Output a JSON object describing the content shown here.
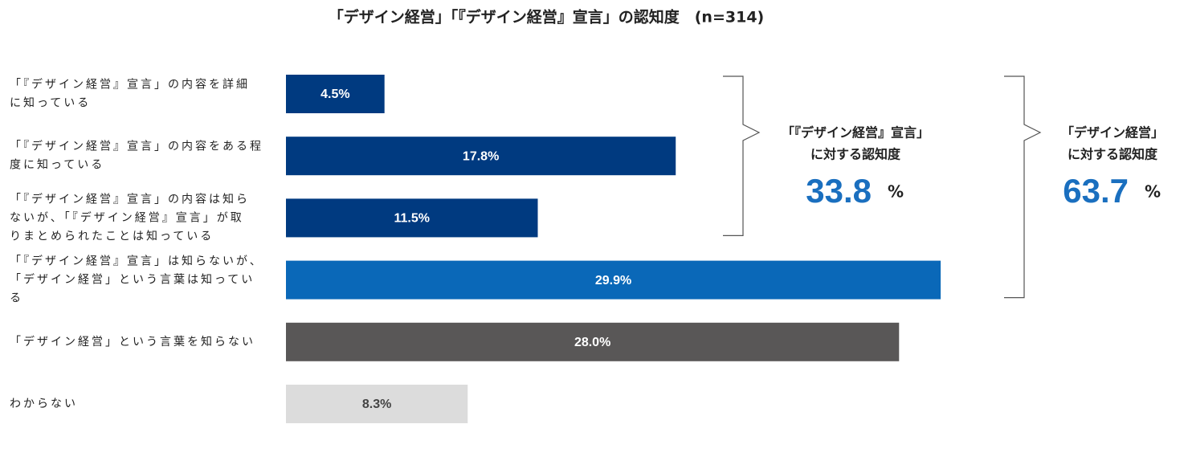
{
  "chart_data": {
    "type": "bar",
    "orientation": "horizontal",
    "title": "「デザイン経営」「『デザイン経営』宣言」の認知度　(n=314)",
    "categories": [
      [
        "「『デザイン経営』宣言」の内容を詳細",
        "に知っている"
      ],
      [
        "「『デザイン経営』宣言」の内容をある程",
        "度に知っている"
      ],
      [
        "「『デザイン経営』宣言」の内容は知ら",
        "ないが、「『デザイン経営』宣言」が取",
        "りまとめられたことは知っている"
      ],
      [
        "「『デザイン経営』宣言」は知らないが、",
        "「デザイン経営」という言葉は知ってい",
        "る"
      ],
      [
        "「デザイン経営」という言葉を知らない"
      ],
      [
        "わからない"
      ]
    ],
    "values": [
      4.5,
      17.8,
      11.5,
      29.9,
      28.0,
      8.3
    ],
    "value_labels": [
      "4.5%",
      "17.8%",
      "11.5%",
      "29.9%",
      "28.0%",
      "8.3%"
    ],
    "colors": [
      "#003a80",
      "#003a80",
      "#003a80",
      "#0a68b8",
      "#595757",
      "#dcdcdc"
    ],
    "label_colors": [
      "#ffffff",
      "#ffffff",
      "#ffffff",
      "#ffffff",
      "#ffffff",
      "#444444"
    ],
    "annotations": [
      {
        "lines": [
          "「『デザイン経営』宣言」",
          "に対する認知度"
        ],
        "value": 33.8,
        "unit": "%",
        "from": 0,
        "to": 2
      },
      {
        "lines": [
          "「デザイン経営」",
          "に対する認知度"
        ],
        "value": 63.7,
        "unit": "%",
        "from": 0,
        "to": 3
      }
    ]
  }
}
